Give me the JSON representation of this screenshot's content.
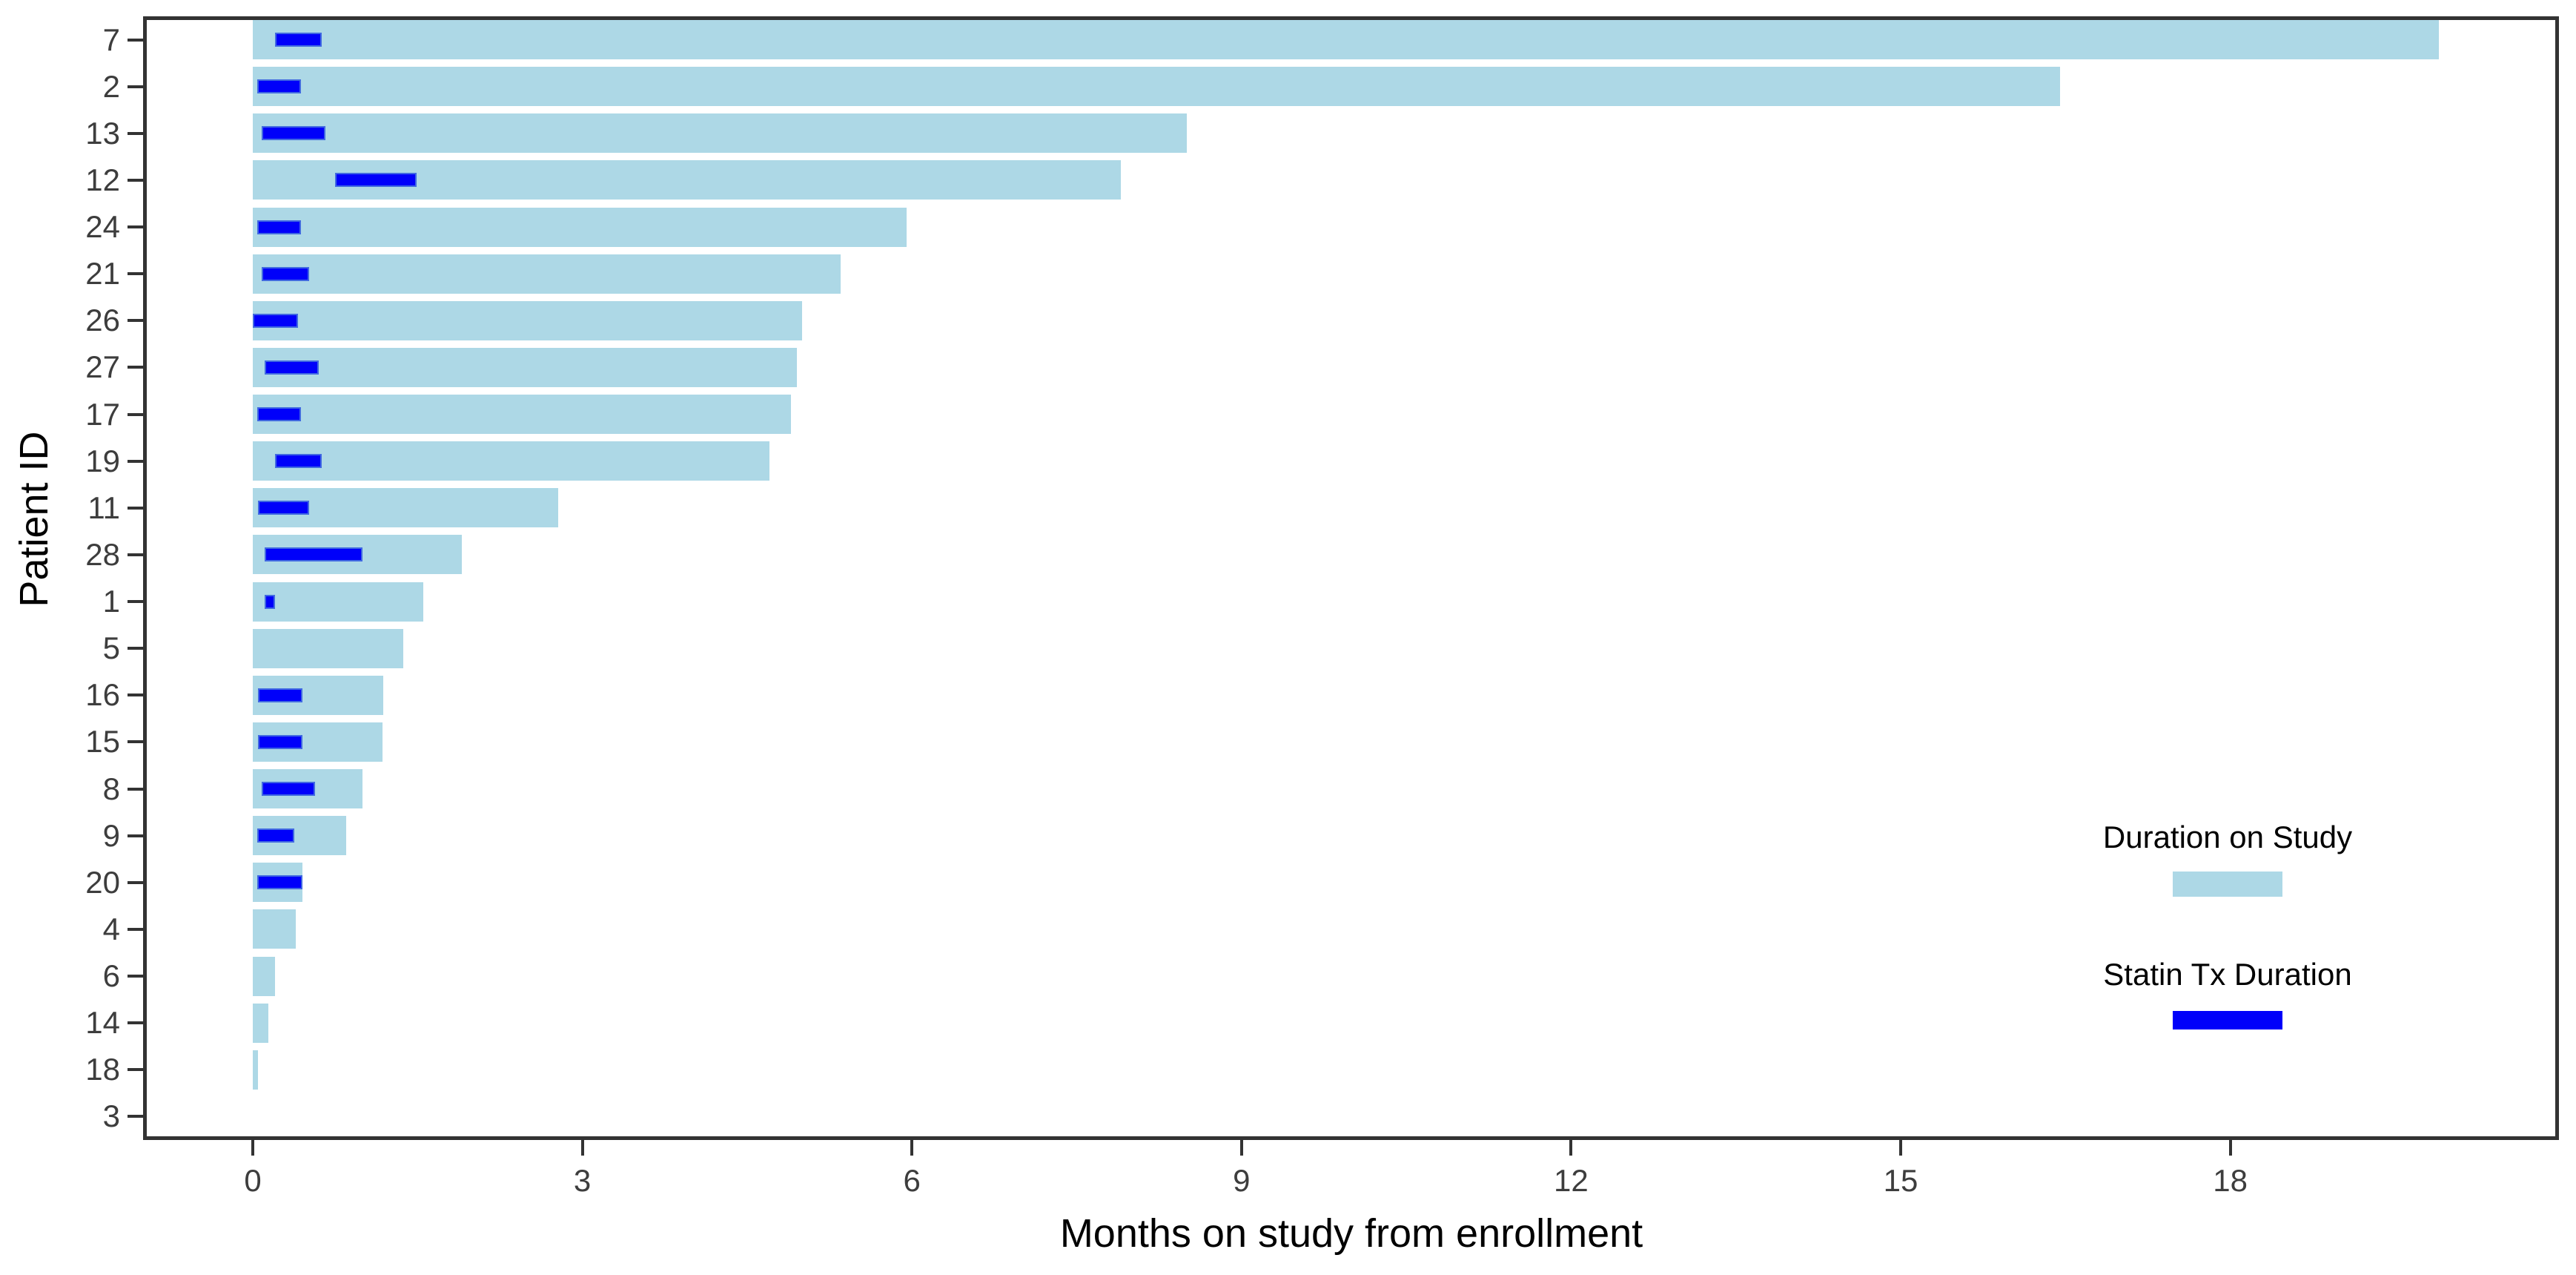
{
  "chart_data": {
    "type": "bar",
    "orientation": "horizontal",
    "xlabel": "Months on study from enrollment",
    "ylabel": "Patient ID",
    "x_ticks": [
      0,
      3,
      6,
      9,
      12,
      15,
      18
    ],
    "xlim": [
      -1,
      21
    ],
    "grid": false,
    "legend_position": "inside lower right",
    "legend": [
      {
        "label": "Duration on Study",
        "color": "#ADD8E6"
      },
      {
        "label": "Statin Tx Duration",
        "color": "#0000FA"
      }
    ],
    "series_note": "Each patient row: total months on study (light blue) and statin treatment interval in months (dark blue overlay)",
    "patients": [
      {
        "id": "7",
        "duration": 19.9,
        "statin_start": 0.2,
        "statin_end": 0.63
      },
      {
        "id": "2",
        "duration": 16.45,
        "statin_start": 0.04,
        "statin_end": 0.44
      },
      {
        "id": "13",
        "duration": 8.5,
        "statin_start": 0.08,
        "statin_end": 0.66
      },
      {
        "id": "12",
        "duration": 7.9,
        "statin_start": 0.75,
        "statin_end": 1.49
      },
      {
        "id": "24",
        "duration": 5.95,
        "statin_start": 0.04,
        "statin_end": 0.44
      },
      {
        "id": "21",
        "duration": 5.35,
        "statin_start": 0.08,
        "statin_end": 0.51
      },
      {
        "id": "26",
        "duration": 5.0,
        "statin_start": 0.0,
        "statin_end": 0.41
      },
      {
        "id": "27",
        "duration": 4.95,
        "statin_start": 0.11,
        "statin_end": 0.6
      },
      {
        "id": "17",
        "duration": 4.9,
        "statin_start": 0.04,
        "statin_end": 0.44
      },
      {
        "id": "19",
        "duration": 4.7,
        "statin_start": 0.2,
        "statin_end": 0.63
      },
      {
        "id": "11",
        "duration": 2.78,
        "statin_start": 0.05,
        "statin_end": 0.51
      },
      {
        "id": "28",
        "duration": 1.9,
        "statin_start": 0.11,
        "statin_end": 1.0
      },
      {
        "id": "1",
        "duration": 1.55,
        "statin_start": 0.11,
        "statin_end": 0.2
      },
      {
        "id": "5",
        "duration": 1.37,
        "statin_start": null,
        "statin_end": null
      },
      {
        "id": "16",
        "duration": 1.19,
        "statin_start": 0.05,
        "statin_end": 0.45
      },
      {
        "id": "15",
        "duration": 1.18,
        "statin_start": 0.05,
        "statin_end": 0.45
      },
      {
        "id": "8",
        "duration": 1.0,
        "statin_start": 0.08,
        "statin_end": 0.57
      },
      {
        "id": "9",
        "duration": 0.85,
        "statin_start": 0.04,
        "statin_end": 0.38
      },
      {
        "id": "20",
        "duration": 0.45,
        "statin_start": 0.04,
        "statin_end": 0.45
      },
      {
        "id": "4",
        "duration": 0.39,
        "statin_start": null,
        "statin_end": null
      },
      {
        "id": "6",
        "duration": 0.2,
        "statin_start": null,
        "statin_end": null
      },
      {
        "id": "14",
        "duration": 0.14,
        "statin_start": null,
        "statin_end": null
      },
      {
        "id": "18",
        "duration": 0.05,
        "statin_start": null,
        "statin_end": null
      },
      {
        "id": "3",
        "duration": 0.0,
        "statin_start": null,
        "statin_end": null
      }
    ]
  },
  "colors": {
    "duration_bar": "#ADD8E6",
    "statin_bar": "#0000FA",
    "statin_border": "#4169E1",
    "axis": "#333333",
    "tick_text": "#3d3d3d",
    "title_text": "#000000"
  }
}
